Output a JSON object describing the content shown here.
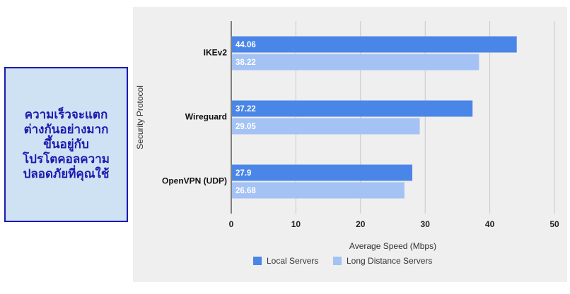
{
  "callout": {
    "text": "ความเร็วจะแตก\nต่างกันอย่างมาก\nขึ้นอยู่กับ\nโปรโตคอลความ\nปลอดภัยที่คุณใช้"
  },
  "colors": {
    "local": "#4a86e8",
    "long_distance": "#a4c2f4",
    "callout_bg": "#cfe2f3",
    "callout_border": "#1a1ab0",
    "panel_bg": "#efefef"
  },
  "chart_data": {
    "type": "bar",
    "orientation": "horizontal",
    "categories": [
      "IKEv2",
      "Wireguard",
      "OpenVPN (UDP)"
    ],
    "series": [
      {
        "name": "Local Servers",
        "values": [
          44.06,
          37.22,
          27.9
        ],
        "labels": [
          "44.06",
          "37.22",
          "27.9"
        ]
      },
      {
        "name": "Long Distance Servers",
        "values": [
          38.22,
          29.05,
          26.68
        ],
        "labels": [
          "38.22",
          "29.05",
          "26.68"
        ]
      }
    ],
    "xlabel": "Average Speed (Mbps)",
    "ylabel": "Security Protocol",
    "xlim": [
      0,
      50
    ],
    "xticks": [
      "0",
      "10",
      "20",
      "30",
      "40",
      "50"
    ],
    "grid": "vertical",
    "legend": "bottom"
  }
}
